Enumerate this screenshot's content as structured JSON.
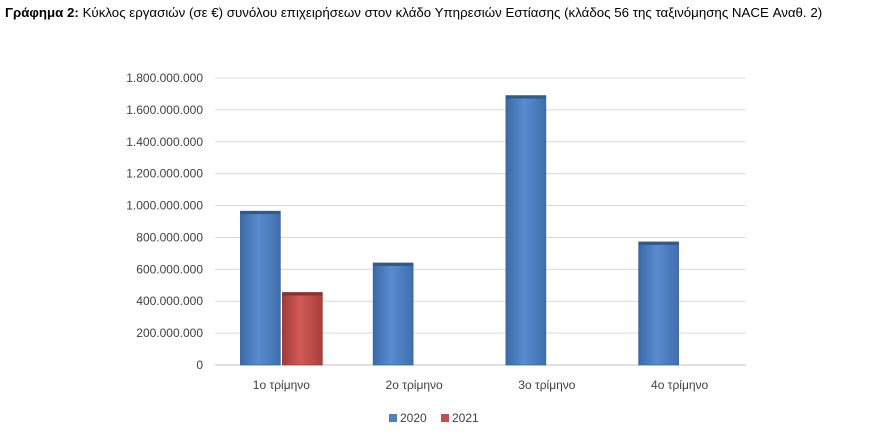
{
  "caption": {
    "label": "Γράφημα 2:",
    "text": "Κύκλος εργασιών (σε €) συνόλου επιχειρήσεων στον κλάδο Υπηρεσιών Εστίασης (κλάδος 56 της ταξινόμησης NACE Αναθ. 2)"
  },
  "chart_data": {
    "type": "bar",
    "categories": [
      "1ο τρίμηνο",
      "2ο τρίμηνο",
      "3ο τρίμηνο",
      "4ο τρίμηνο"
    ],
    "series": [
      {
        "name": "2020",
        "values": [
          965000000,
          640000000,
          1690000000,
          772000000
        ],
        "color": "#4f81bd"
      },
      {
        "name": "2021",
        "values": [
          455000000,
          null,
          null,
          null
        ],
        "color": "#c0504d"
      }
    ],
    "yticks": [
      "0",
      "200.000.000",
      "400.000.000",
      "600.000.000",
      "800.000.000",
      "1.000.000.000",
      "1.200.000.000",
      "1.400.000.000",
      "1.600.000.000",
      "1.800.000.000"
    ],
    "ylim": [
      0,
      1800000000
    ],
    "grid": true,
    "legend": "bottom"
  }
}
